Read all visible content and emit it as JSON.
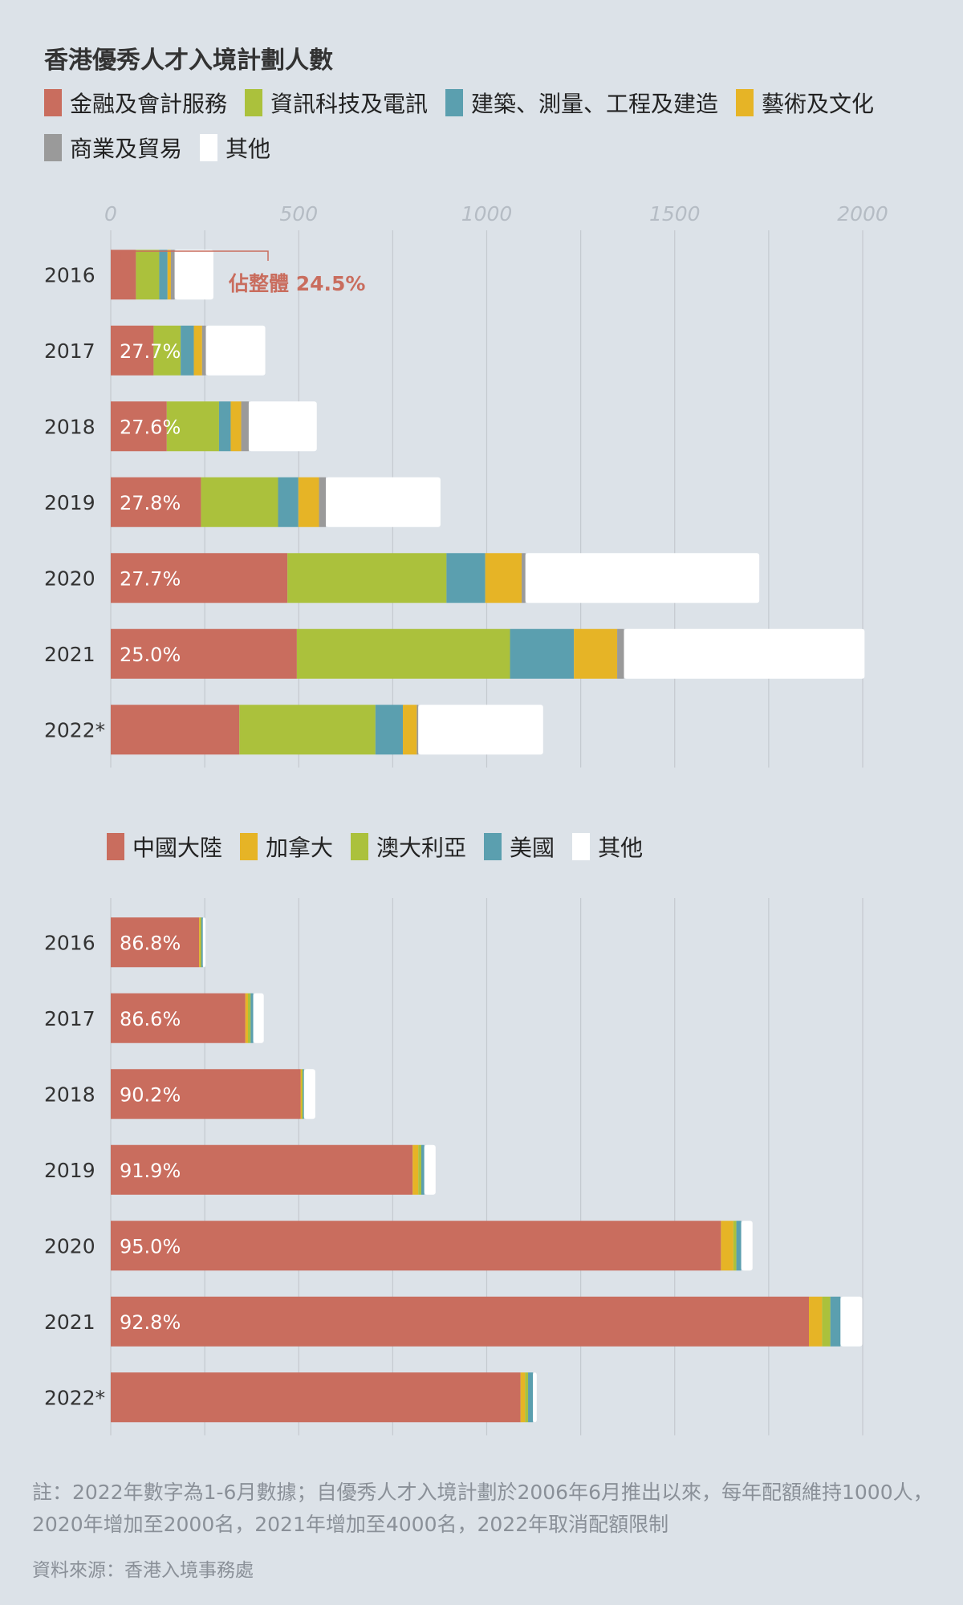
{
  "title": "香港優秀人才入境計劃人數",
  "legend_top": [
    {
      "label": "金融及會計服務",
      "color": "#c96d5e"
    },
    {
      "label": "資訊科技及電訊",
      "color": "#abc13c"
    },
    {
      "label": "建築、測量、工程及建造",
      "color": "#5b9faf"
    },
    {
      "label": "藝術及文化",
      "color": "#e6b426"
    },
    {
      "label": "商業及貿易",
      "color": "#9a9a9a"
    },
    {
      "label": "其他",
      "color": "#ffffff"
    }
  ],
  "legend_bottom": [
    {
      "label": "中國大陸",
      "color": "#c96d5e"
    },
    {
      "label": "加拿大",
      "color": "#e6b426"
    },
    {
      "label": "澳大利亞",
      "color": "#abc13c"
    },
    {
      "label": "美國",
      "color": "#5b9faf"
    },
    {
      "label": "其他",
      "color": "#ffffff"
    }
  ],
  "annotation": "佔整體 24.5%",
  "note": "註：2022年數字為1-6月數據；自優秀人才入境計劃於2006年6月推出以來，每年配額維持1000人，2020年增加至2000名，2021年增加至4000名，2022年取消配額限制",
  "source": "資料來源：香港入境事務處",
  "chart_data": [
    {
      "type": "bar",
      "orientation": "horizontal",
      "stacked": true,
      "categories": [
        "2016",
        "2017",
        "2018",
        "2019",
        "2020",
        "2021",
        "2022*"
      ],
      "xlim": [
        0,
        2000
      ],
      "xticks": [
        "0",
        "500",
        "1000",
        "1500",
        "2000"
      ],
      "grid": true,
      "series": [
        {
          "name": "金融及會計服務",
          "color": "#c96d5e",
          "values": [
            67,
            114,
            149,
            240,
            470,
            495,
            342
          ]
        },
        {
          "name": "資訊科技及電訊",
          "color": "#abc13c",
          "values": [
            62,
            72,
            139,
            205,
            423,
            567,
            362
          ]
        },
        {
          "name": "建築、測量、工程及建造",
          "color": "#5b9faf",
          "values": [
            22,
            35,
            31,
            54,
            103,
            170,
            73
          ]
        },
        {
          "name": "藝術及文化",
          "color": "#e6b426",
          "values": [
            9,
            22,
            28,
            55,
            97,
            115,
            37
          ]
        },
        {
          "name": "商業及貿易",
          "color": "#9a9a9a",
          "values": [
            10,
            10,
            20,
            18,
            10,
            18,
            4
          ]
        },
        {
          "name": "其他",
          "color": "#ffffff",
          "values": [
            103,
            158,
            181,
            305,
            622,
            640,
            332
          ]
        }
      ],
      "data_labels": [
        "",
        "27.7%",
        "27.6%",
        "27.8%",
        "27.7%",
        "25.0%",
        ""
      ]
    },
    {
      "type": "bar",
      "orientation": "horizontal",
      "stacked": true,
      "categories": [
        "2016",
        "2017",
        "2018",
        "2019",
        "2020",
        "2021",
        "2022*"
      ],
      "xlim": [
        0,
        2000
      ],
      "grid": true,
      "series": [
        {
          "name": "中國大陸",
          "color": "#c96d5e",
          "values": [
            235,
            358,
            505,
            803,
            1623,
            1857,
            1090
          ]
        },
        {
          "name": "加拿大",
          "color": "#e6b426",
          "values": [
            3,
            7,
            3,
            15,
            33,
            35,
            12
          ]
        },
        {
          "name": "澳大利亞",
          "color": "#abc13c",
          "values": [
            3,
            7,
            3,
            8,
            8,
            22,
            8
          ]
        },
        {
          "name": "美國",
          "color": "#5b9faf",
          "values": [
            4,
            7,
            3,
            8,
            13,
            27,
            13
          ]
        },
        {
          "name": "其他",
          "color": "#ffffff",
          "values": [
            7,
            28,
            30,
            30,
            30,
            58,
            10
          ]
        }
      ],
      "data_labels": [
        "86.8%",
        "86.6%",
        "90.2%",
        "91.9%",
        "95.0%",
        "92.8%",
        ""
      ]
    }
  ]
}
